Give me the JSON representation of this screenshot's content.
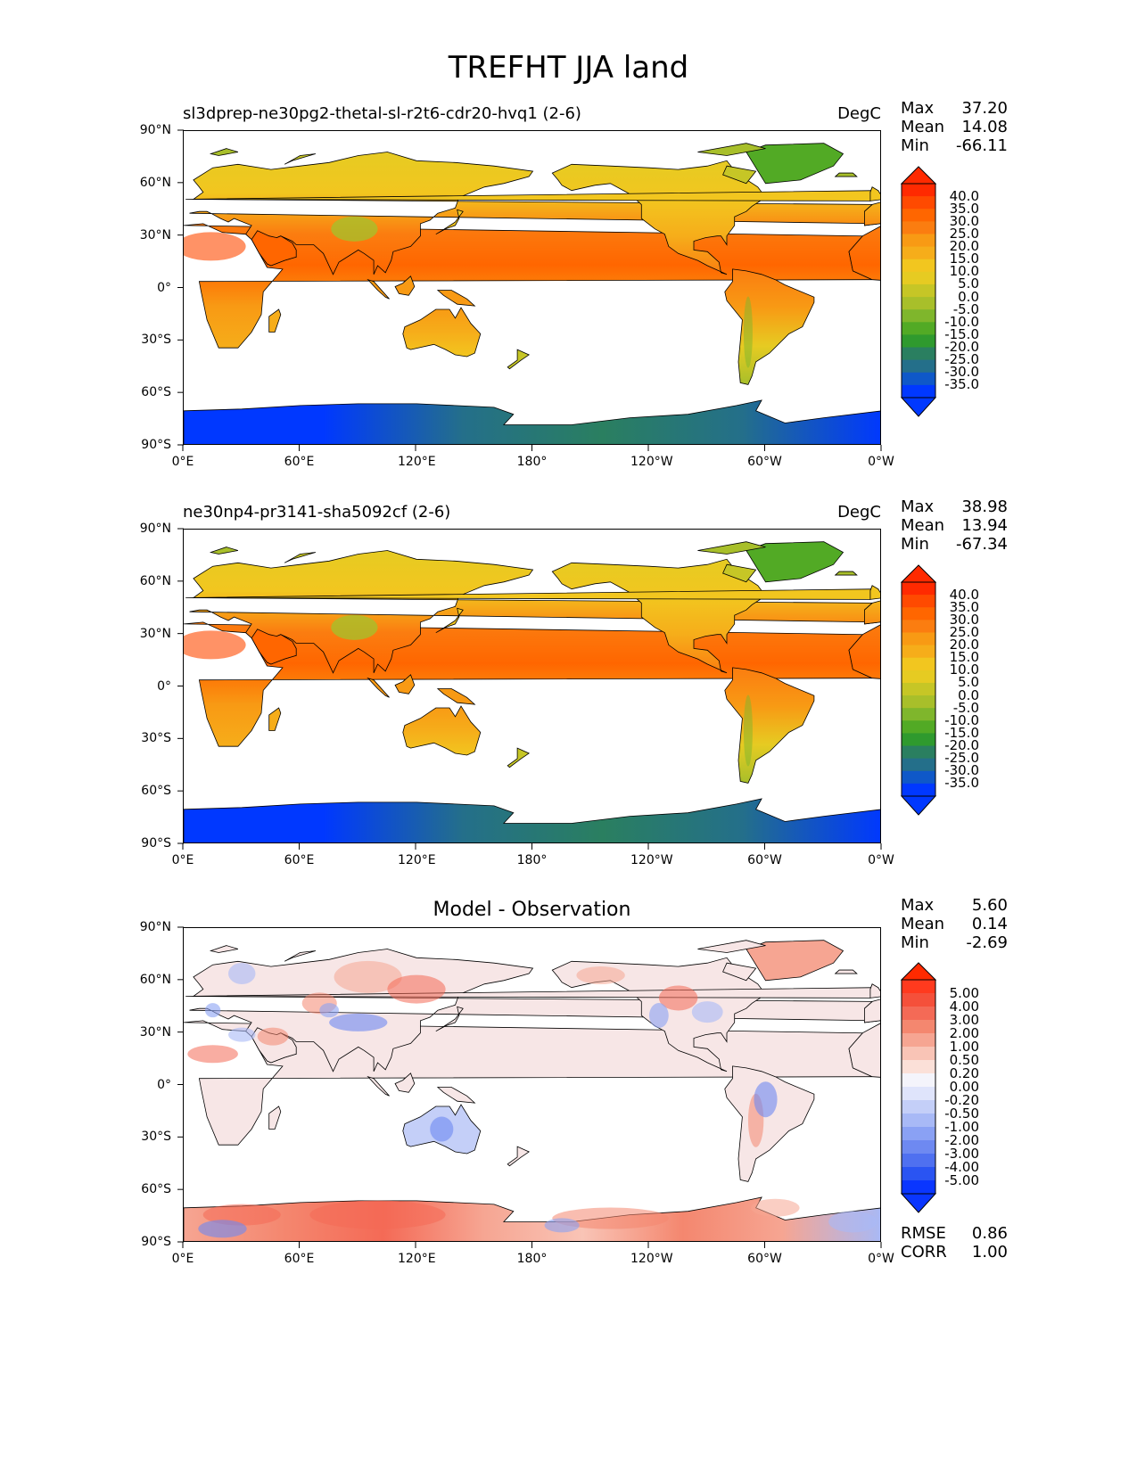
{
  "figure": {
    "title": "TREFHT JJA land"
  },
  "lon_ticks": [
    "0°E",
    "60°E",
    "120°E",
    "180°",
    "120°W",
    "60°W",
    "0°W"
  ],
  "lat_ticks": [
    "90°N",
    "60°N",
    "30°N",
    "0°",
    "30°S",
    "60°S",
    "90°S"
  ],
  "panels": [
    {
      "id": "test",
      "title": "sl3dprep-ne30pg2-thetal-sl-r2t6-cdr20-hvq1 (2-6)",
      "units": "DegC",
      "stats": [
        {
          "label": "Max",
          "value": "37.20"
        },
        {
          "label": "Mean",
          "value": "14.08"
        },
        {
          "label": "Min",
          "value": "-66.11"
        }
      ],
      "colorbar": {
        "labels": [
          "40.0",
          "35.0",
          "30.0",
          "25.0",
          "20.0",
          "15.0",
          "10.0",
          "5.0",
          "0.0",
          "-5.0",
          "-10.0",
          "-15.0",
          "-20.0",
          "-25.0",
          "-30.0",
          "-35.0"
        ],
        "colors": [
          "#ff2a00",
          "#ff4a00",
          "#ff6600",
          "#fb7d10",
          "#f89a14",
          "#f6ad1a",
          "#f2c61f",
          "#e6cb22",
          "#c6c626",
          "#a8bf2a",
          "#7fb62c",
          "#52aa25",
          "#2f9a2e",
          "#2a7f60",
          "#246f8a",
          "#0f58c8",
          "#0038ff"
        ],
        "over_color": "#ff2a00",
        "under_color": "#0038ff"
      }
    },
    {
      "id": "ref",
      "title": "ne30np4-pr3141-sha5092cf (2-6)",
      "units": "DegC",
      "stats": [
        {
          "label": "Max",
          "value": "38.98"
        },
        {
          "label": "Mean",
          "value": "13.94"
        },
        {
          "label": "Min",
          "value": "-67.34"
        }
      ],
      "colorbar": {
        "labels": [
          "40.0",
          "35.0",
          "30.0",
          "25.0",
          "20.0",
          "15.0",
          "10.0",
          "5.0",
          "0.0",
          "-5.0",
          "-10.0",
          "-15.0",
          "-20.0",
          "-25.0",
          "-30.0",
          "-35.0"
        ],
        "colors": [
          "#ff2a00",
          "#ff4a00",
          "#ff6600",
          "#fb7d10",
          "#f89a14",
          "#f6ad1a",
          "#f2c61f",
          "#e6cb22",
          "#c6c626",
          "#a8bf2a",
          "#7fb62c",
          "#52aa25",
          "#2f9a2e",
          "#2a7f60",
          "#246f8a",
          "#0f58c8",
          "#0038ff"
        ],
        "over_color": "#ff2a00",
        "under_color": "#0038ff"
      }
    },
    {
      "id": "diff",
      "title": "Model - Observation",
      "units": "",
      "stats": [
        {
          "label": "Max",
          "value": "5.60"
        },
        {
          "label": "Mean",
          "value": "0.14"
        },
        {
          "label": "Min",
          "value": "-2.69"
        }
      ],
      "extra_stats": [
        {
          "label": "RMSE",
          "value": "0.86"
        },
        {
          "label": "CORR",
          "value": "1.00"
        }
      ],
      "colorbar": {
        "labels": [
          "5.00",
          "4.00",
          "3.00",
          "2.00",
          "1.00",
          "0.50",
          "0.20",
          "0.00",
          "-0.20",
          "-0.50",
          "-1.00",
          "-2.00",
          "-3.00",
          "-4.00",
          "-5.00"
        ],
        "colors": [
          "#ff3a1e",
          "#f5503a",
          "#f46a56",
          "#f4876f",
          "#f6a592",
          "#f9c4b6",
          "#fbe0d8",
          "#f4f4fb",
          "#dfe4fb",
          "#c4cff8",
          "#a8b9f6",
          "#8aa1f4",
          "#6e89f1",
          "#4f70f0",
          "#2a54f2",
          "#0a36ff"
        ],
        "over_color": "#ff2a00",
        "under_color": "#0a36ff"
      }
    }
  ]
}
